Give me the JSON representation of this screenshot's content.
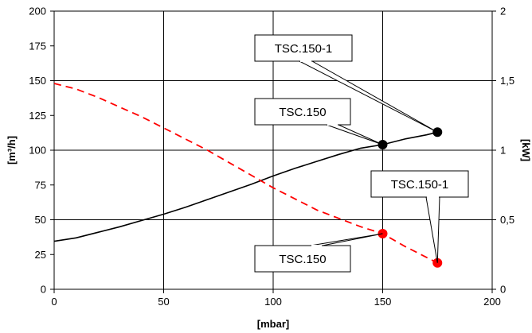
{
  "chart_data": {
    "type": "line",
    "title": "",
    "xlabel": "[mbar]",
    "ylabel": "[m³/h]",
    "y2label": "[kW]",
    "xlim": [
      0,
      200
    ],
    "ylim": [
      0,
      200
    ],
    "y2lim": [
      0,
      2
    ],
    "xticks": [
      "0",
      "50",
      "100",
      "150",
      "200"
    ],
    "yticks": [
      "0",
      "25",
      "50",
      "75",
      "100",
      "125",
      "150",
      "175",
      "200"
    ],
    "y2ticks": [
      "0",
      "0,5",
      "1",
      "1,5",
      "2"
    ],
    "grid": true,
    "colors": {
      "flow": "#000000",
      "power": "#ff0000"
    },
    "series": [
      {
        "axis": "left",
        "style": "solid",
        "x": [
          0,
          10,
          20,
          30,
          40,
          50,
          60,
          70,
          80,
          90,
          100,
          110,
          120,
          130,
          140,
          150,
          160,
          170,
          175
        ],
        "y": [
          34.5,
          37,
          41,
          45,
          49.5,
          54,
          59,
          64.5,
          70,
          75.5,
          81.5,
          87,
          92,
          97,
          101.5,
          104,
          108,
          111,
          113
        ]
      },
      {
        "axis": "right",
        "style": "dashed",
        "x": [
          0,
          10,
          20,
          30,
          40,
          50,
          60,
          70,
          80,
          90,
          100,
          110,
          120,
          130,
          140,
          150,
          160,
          170,
          175
        ],
        "y": [
          1.48,
          1.44,
          1.38,
          1.31,
          1.24,
          1.16,
          1.08,
          1.0,
          0.91,
          0.82,
          0.73,
          0.65,
          0.57,
          0.51,
          0.45,
          0.4,
          0.31,
          0.23,
          0.19
        ]
      }
    ],
    "points": [
      {
        "series": 0,
        "x": 150,
        "y": 104
      },
      {
        "series": 0,
        "x": 175,
        "y": 113
      },
      {
        "series": 1,
        "x": 150,
        "y": 0.4
      },
      {
        "series": 1,
        "x": 175,
        "y": 0.19
      }
    ],
    "annotations": [
      {
        "text": "TSC.150-1",
        "point": 1
      },
      {
        "text": "TSC.150",
        "point": 0
      },
      {
        "text": "TSC.150-1",
        "point": 3
      },
      {
        "text": "TSC.150",
        "point": 2
      }
    ]
  }
}
